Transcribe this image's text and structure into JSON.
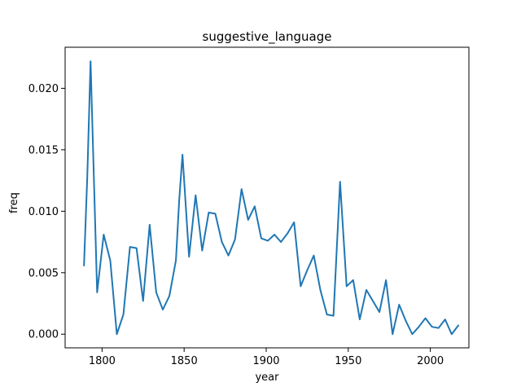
{
  "chart_data": {
    "type": "line",
    "title": "suggestive_language",
    "xlabel": "year",
    "ylabel": "freq",
    "xlim": [
      1777.5,
      2023.5
    ],
    "ylim": [
      -0.00111,
      0.02334
    ],
    "xticks": [
      1800,
      1850,
      1900,
      1950,
      2000
    ],
    "xtick_labels": [
      "1800",
      "1850",
      "1900",
      "1950",
      "2000"
    ],
    "yticks": [
      0.0,
      0.005,
      0.01,
      0.015,
      0.02
    ],
    "ytick_labels": [
      "0.000",
      "0.005",
      "0.010",
      "0.015",
      "0.020"
    ],
    "grid": false,
    "line_color": "#1f77b4",
    "series": [
      {
        "x": [
          1789,
          1791,
          1793,
          1797,
          1801,
          1805,
          1809,
          1813,
          1817,
          1821,
          1825,
          1829,
          1833,
          1837,
          1841,
          1845,
          1847,
          1849,
          1853,
          1857,
          1861,
          1865,
          1869,
          1873,
          1877,
          1881,
          1885,
          1889,
          1893,
          1897,
          1901,
          1905,
          1909,
          1913,
          1917,
          1921,
          1925,
          1929,
          1933,
          1937,
          1941,
          1945,
          1949,
          1953,
          1957,
          1961,
          1965,
          1969,
          1973,
          1977,
          1981,
          1985,
          1989,
          1993,
          1997,
          2001,
          2005,
          2009,
          2013,
          2017
        ],
        "y": [
          0.0056,
          0.0128,
          0.0222,
          0.0034,
          0.0081,
          0.006,
          0.0,
          0.0016,
          0.0071,
          0.007,
          0.0027,
          0.0089,
          0.0034,
          0.002,
          0.0031,
          0.006,
          0.0109,
          0.0146,
          0.0063,
          0.0113,
          0.0068,
          0.0099,
          0.0098,
          0.0075,
          0.0064,
          0.0077,
          0.0118,
          0.0093,
          0.0104,
          0.0078,
          0.0076,
          0.0081,
          0.0075,
          0.0082,
          0.0091,
          0.0039,
          0.0052,
          0.0064,
          0.0036,
          0.0016,
          0.0015,
          0.0124,
          0.0039,
          0.0044,
          0.0012,
          0.0036,
          0.0027,
          0.0018,
          0.0044,
          0.0,
          0.0024,
          0.0011,
          0.0,
          0.0006,
          0.0013,
          0.0006,
          0.0005,
          0.0012,
          0.0,
          0.0007
        ]
      }
    ]
  }
}
